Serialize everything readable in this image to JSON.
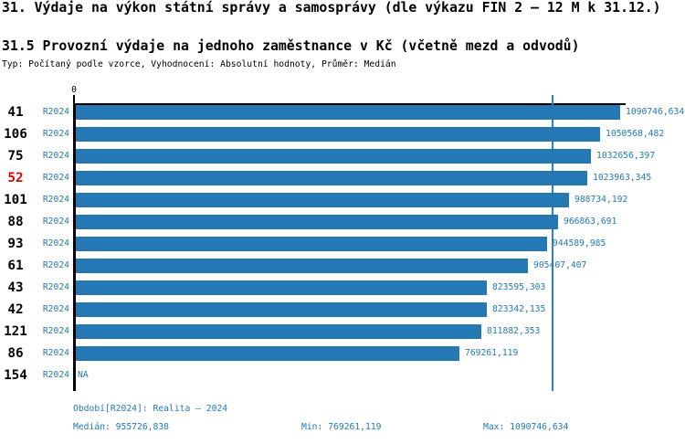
{
  "page": {
    "title": "31. Výdaje na výkon státní správy a samosprávy (dle výkazu FIN 2 – 12 M k 31.12.)",
    "subtitle": "31.5 Provozní výdaje na jednoho zaměstnance v Kč (včetně mezd a odvodů)",
    "meta": "Typ: Počítaný podle vzorce, Vyhodnocení: Absolutní hodnoty, Průměr: Medián"
  },
  "chart_data": {
    "type": "bar",
    "orientation": "horizontal",
    "title": "31.5 Provozní výdaje na jednoho zaměstnance v Kč (včetně mezd a odvodů)",
    "xlabel": "",
    "ylabel": "",
    "xlim": [
      0,
      1090746.634
    ],
    "axis_zero_label": "0",
    "grid": false,
    "legend": false,
    "median_value": 955726.838,
    "min_value": 769261.119,
    "max_value": 1090746.634,
    "categories": [
      "41",
      "106",
      "75",
      "52",
      "101",
      "88",
      "93",
      "61",
      "43",
      "42",
      "121",
      "86",
      "154"
    ],
    "rows": [
      {
        "id": "41",
        "period": "R2024",
        "value": 1090746.634,
        "value_label": "1090746,634",
        "highlight": false
      },
      {
        "id": "106",
        "period": "R2024",
        "value": 1050568.482,
        "value_label": "1050568,482",
        "highlight": false
      },
      {
        "id": "75",
        "period": "R2024",
        "value": 1032656.397,
        "value_label": "1032656,397",
        "highlight": false
      },
      {
        "id": "52",
        "period": "R2024",
        "value": 1023963.345,
        "value_label": "1023963,345",
        "highlight": true
      },
      {
        "id": "101",
        "period": "R2024",
        "value": 988734.192,
        "value_label": "988734,192",
        "highlight": false
      },
      {
        "id": "88",
        "period": "R2024",
        "value": 966863.691,
        "value_label": "966863,691",
        "highlight": false
      },
      {
        "id": "93",
        "period": "R2024",
        "value": 944589.985,
        "value_label": "944589,985",
        "highlight": false
      },
      {
        "id": "61",
        "period": "R2024",
        "value": 905407.407,
        "value_label": "905407,407",
        "highlight": false
      },
      {
        "id": "43",
        "period": "R2024",
        "value": 823595.303,
        "value_label": "823595,303",
        "highlight": false
      },
      {
        "id": "42",
        "period": "R2024",
        "value": 823342.135,
        "value_label": "823342,135",
        "highlight": false
      },
      {
        "id": "121",
        "period": "R2024",
        "value": 811882.353,
        "value_label": "811882,353",
        "highlight": false
      },
      {
        "id": "86",
        "period": "R2024",
        "value": 769261.119,
        "value_label": "769261,119",
        "highlight": false
      },
      {
        "id": "154",
        "period": "R2024",
        "value": null,
        "value_label": "NA",
        "highlight": false
      }
    ],
    "colors": {
      "bar": "#2478b4",
      "median_line": "#2e7fba",
      "accent_text": "#2478b4",
      "highlight_id": "#dd0000",
      "axis": "#000000"
    }
  },
  "footer": {
    "period_label": "Období[R2024]: Realita – 2024",
    "median_label": "Medián: 955726,838",
    "min_label": "Min: 769261,119",
    "max_label": "Max: 1090746,634"
  }
}
